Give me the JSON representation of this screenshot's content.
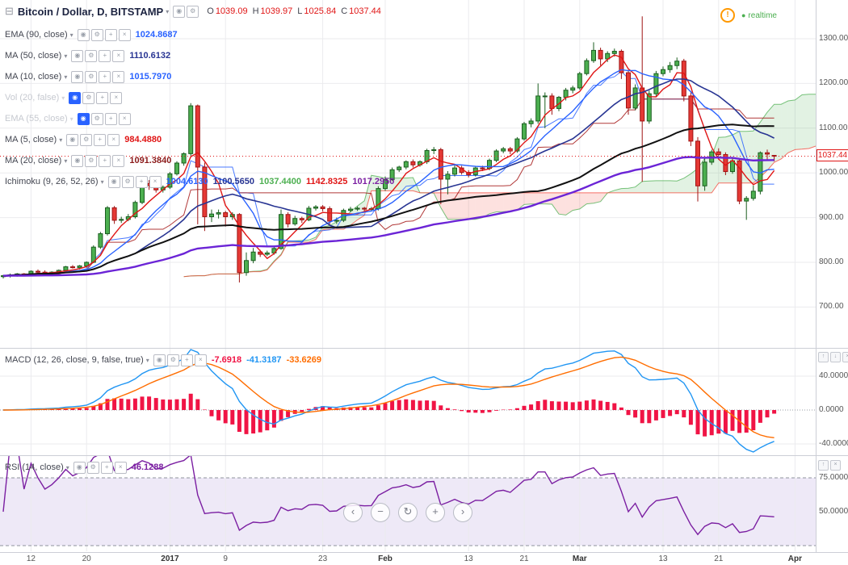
{
  "header": {
    "symbol_title": "Bitcoin / Dollar, D, BITSTAMP",
    "ohlc": {
      "o_label": "O",
      "o": "1039.09",
      "h_label": "H",
      "h": "1039.97",
      "l_label": "L",
      "l": "1025.84",
      "c_label": "C",
      "c": "1037.44"
    },
    "realtime_label": "realtime"
  },
  "icons": {
    "layout": "⊟",
    "caret": "▾",
    "eye": "◉",
    "gear": "⚙",
    "add": "+",
    "close": "×",
    "warn": "!",
    "dot": "●"
  },
  "indicators": [
    {
      "label": "EMA (90, close)",
      "hidden": false,
      "values": [
        {
          "text": "1024.8687",
          "color": "#2962ff"
        }
      ]
    },
    {
      "label": "MA (50, close)",
      "hidden": false,
      "values": [
        {
          "text": "1110.6132",
          "color": "#283593"
        }
      ]
    },
    {
      "label": "MA (10, close)",
      "hidden": false,
      "values": [
        {
          "text": "1015.7970",
          "color": "#2962ff"
        }
      ]
    },
    {
      "label": "Vol (20, false)",
      "hidden": true,
      "values": []
    },
    {
      "label": "EMA (55, close)",
      "hidden": true,
      "values": []
    },
    {
      "label": "MA (5, close)",
      "hidden": false,
      "values": [
        {
          "text": "984.4880",
          "color": "#e01515"
        }
      ]
    },
    {
      "label": "MA (20, close)",
      "hidden": false,
      "values": [
        {
          "text": "1091.3840",
          "color": "#8b1a1a"
        }
      ]
    },
    {
      "label": "Ichimoku (9, 26, 52, 26)",
      "hidden": false,
      "values": [
        {
          "text": "1004.6130",
          "color": "#2962ff"
        },
        {
          "text": "1100.5650",
          "color": "#283593"
        },
        {
          "text": "1037.4400",
          "color": "#4caf50"
        },
        {
          "text": "1142.8325",
          "color": "#e01515"
        },
        {
          "text": "1017.2950",
          "color": "#7b1fa2"
        }
      ]
    }
  ],
  "macd_legend": {
    "label": "MACD (12, 26, close, 9, false, true)",
    "hidden": false,
    "values": [
      {
        "text": "-7.6918",
        "color": "#f01445"
      },
      {
        "text": "-41.3187",
        "color": "#2196f3"
      },
      {
        "text": "-33.6269",
        "color": "#ff6d00"
      }
    ]
  },
  "rsi_legend": {
    "label": "RSI (14, close)",
    "hidden": false,
    "values": [
      {
        "text": "46.1288",
        "color": "#7b1fa2"
      }
    ]
  },
  "nav_buttons": [
    {
      "glyph": "‹",
      "name": "scroll-left-button"
    },
    {
      "glyph": "−",
      "name": "zoom-out-button"
    },
    {
      "glyph": "↻",
      "name": "reset-chart-button"
    },
    {
      "glyph": "+",
      "name": "zoom-in-button"
    },
    {
      "glyph": "›",
      "name": "scroll-right-button"
    }
  ],
  "pane_buttons": {
    "macd": [
      {
        "glyph": "↑",
        "name": "pane-move-up-button"
      },
      {
        "glyph": "↓",
        "name": "pane-move-down-button"
      },
      {
        "glyph": "×",
        "name": "pane-close-button"
      }
    ],
    "rsi": [
      {
        "glyph": "↑",
        "name": "pane-move-up-button"
      },
      {
        "glyph": "×",
        "name": "pane-close-button"
      }
    ]
  },
  "chart_data": {
    "type": "candlestick",
    "title": "Bitcoin / Dollar, D, BITSTAMP",
    "interval": "D",
    "price_axis_ticks": [
      1300,
      1200,
      1100,
      1000,
      900,
      800,
      700
    ],
    "last_price": 1037.44,
    "ylim": [
      660,
      1380
    ],
    "macd_axis_ticks": [
      40,
      0,
      -40
    ],
    "rsi_axis_ticks": [
      75,
      50
    ],
    "rsi_band": [
      25,
      75
    ],
    "overlays": [
      {
        "name": "MA5",
        "type": "sma",
        "period": 5,
        "color": "#e01515",
        "width": 1.4
      },
      {
        "name": "MA10",
        "type": "sma",
        "period": 10,
        "color": "#2962ff",
        "width": 1.4
      },
      {
        "name": "MA20",
        "type": "sma",
        "period": 20,
        "color": "#283593",
        "width": 1.6
      },
      {
        "name": "MA50",
        "type": "sma",
        "period": 50,
        "color": "#111111",
        "width": 2
      },
      {
        "name": "EMA90",
        "type": "ema",
        "period": 90,
        "color": "#6b24d6",
        "width": 2.4
      }
    ],
    "ichimoku": {
      "tenkan": 9,
      "kijun": 26,
      "senkouB": 52,
      "displacement": 26,
      "colors": {
        "tenkan": "#2962ff",
        "kijun": "#a31515",
        "spanA": "#4caf50",
        "spanB": "#f44336"
      }
    },
    "macd_params": {
      "fast": 12,
      "slow": 26,
      "signal": 9,
      "colors": {
        "macd": "#2196f3",
        "signal": "#ff6d00",
        "histogram": "#f01445"
      }
    },
    "rsi_params": {
      "period": 14,
      "color": "#7b1fa2"
    },
    "candle_colors": {
      "up_fill": "#4caf50",
      "up_stroke": "#1b5e20",
      "down_fill": "#e53935",
      "down_stroke": "#9f1414"
    },
    "time_labels": [
      {
        "text": "12",
        "index": 4
      },
      {
        "text": "20",
        "index": 12
      },
      {
        "text": "2017",
        "index": 24,
        "bold": true
      },
      {
        "text": "9",
        "index": 32
      },
      {
        "text": "23",
        "index": 46
      },
      {
        "text": "Feb",
        "index": 55,
        "bold": true
      },
      {
        "text": "13",
        "index": 67
      },
      {
        "text": "21",
        "index": 75
      },
      {
        "text": "Mar",
        "index": 83,
        "bold": true
      },
      {
        "text": "13",
        "index": 95
      },
      {
        "text": "21",
        "index": 103
      },
      {
        "text": "Apr",
        "index": 114,
        "bold": true
      }
    ],
    "candles": [
      [
        768,
        772,
        764,
        770
      ],
      [
        770,
        775,
        766,
        772
      ],
      [
        772,
        776,
        768,
        774
      ],
      [
        774,
        776,
        770,
        772
      ],
      [
        772,
        782,
        770,
        780
      ],
      [
        780,
        784,
        776,
        778
      ],
      [
        778,
        782,
        774,
        776
      ],
      [
        776,
        780,
        772,
        778
      ],
      [
        778,
        784,
        776,
        782
      ],
      [
        782,
        792,
        780,
        790
      ],
      [
        790,
        794,
        786,
        788
      ],
      [
        788,
        794,
        784,
        792
      ],
      [
        792,
        802,
        788,
        800
      ],
      [
        800,
        838,
        798,
        834
      ],
      [
        834,
        868,
        830,
        864
      ],
      [
        864,
        926,
        860,
        922
      ],
      [
        922,
        926,
        886,
        894
      ],
      [
        894,
        902,
        888,
        896
      ],
      [
        896,
        908,
        892,
        902
      ],
      [
        902,
        938,
        898,
        934
      ],
      [
        934,
        982,
        930,
        976
      ],
      [
        976,
        984,
        962,
        972
      ],
      [
        972,
        976,
        956,
        962
      ],
      [
        962,
        972,
        956,
        968
      ],
      [
        968,
        1002,
        964,
        998
      ],
      [
        998,
        1026,
        994,
        1022
      ],
      [
        1022,
        1046,
        1016,
        1043
      ],
      [
        1043,
        1156,
        1038,
        1150
      ],
      [
        1150,
        1153,
        885,
        1013
      ],
      [
        1013,
        1023,
        870,
        902
      ],
      [
        902,
        918,
        890,
        908
      ],
      [
        908,
        918,
        898,
        911
      ],
      [
        911,
        915,
        880,
        902
      ],
      [
        902,
        912,
        895,
        907
      ],
      [
        907,
        910,
        755,
        777
      ],
      [
        777,
        822,
        770,
        804
      ],
      [
        804,
        832,
        798,
        823
      ],
      [
        823,
        828,
        812,
        818
      ],
      [
        818,
        826,
        814,
        821
      ],
      [
        821,
        835,
        817,
        831
      ],
      [
        831,
        918,
        828,
        907
      ],
      [
        907,
        912,
        878,
        886
      ],
      [
        886,
        904,
        882,
        898
      ],
      [
        898,
        902,
        888,
        895
      ],
      [
        895,
        926,
        892,
        921
      ],
      [
        921,
        928,
        916,
        924
      ],
      [
        924,
        928,
        914,
        920
      ],
      [
        920,
        925,
        884,
        892
      ],
      [
        892,
        900,
        886,
        894
      ],
      [
        894,
        920,
        890,
        916
      ],
      [
        916,
        924,
        912,
        919
      ],
      [
        919,
        925,
        915,
        921
      ],
      [
        921,
        924,
        914,
        919
      ],
      [
        919,
        924,
        915,
        920
      ],
      [
        920,
        970,
        916,
        965
      ],
      [
        965,
        992,
        960,
        985
      ],
      [
        985,
        1012,
        982,
        1007
      ],
      [
        1007,
        1016,
        1002,
        1013
      ],
      [
        1013,
        1028,
        1008,
        1025
      ],
      [
        1025,
        1030,
        1012,
        1018
      ],
      [
        1018,
        1028,
        1014,
        1025
      ],
      [
        1025,
        1054,
        1020,
        1050
      ],
      [
        1050,
        1058,
        1042,
        1052
      ],
      [
        1052,
        1056,
        930,
        986
      ],
      [
        986,
        1004,
        952,
        997
      ],
      [
        997,
        1018,
        992,
        1011
      ],
      [
        1011,
        1016,
        996,
        1001
      ],
      [
        1001,
        1006,
        990,
        996
      ],
      [
        996,
        1014,
        992,
        1011
      ],
      [
        1011,
        1016,
        1004,
        1010
      ],
      [
        1010,
        1032,
        1006,
        1028
      ],
      [
        1028,
        1053,
        1024,
        1049
      ],
      [
        1049,
        1058,
        1044,
        1054
      ],
      [
        1054,
        1058,
        1042,
        1049
      ],
      [
        1049,
        1080,
        1045,
        1076
      ],
      [
        1076,
        1114,
        1072,
        1110
      ],
      [
        1110,
        1122,
        1102,
        1116
      ],
      [
        1116,
        1200,
        1110,
        1172
      ],
      [
        1172,
        1180,
        1100,
        1172
      ],
      [
        1172,
        1178,
        1130,
        1144
      ],
      [
        1144,
        1172,
        1138,
        1169
      ],
      [
        1169,
        1190,
        1162,
        1185
      ],
      [
        1185,
        1195,
        1178,
        1190
      ],
      [
        1190,
        1226,
        1186,
        1222
      ],
      [
        1222,
        1256,
        1218,
        1251
      ],
      [
        1251,
        1292,
        1246,
        1274
      ],
      [
        1274,
        1280,
        1240,
        1255
      ],
      [
        1255,
        1272,
        1248,
        1267
      ],
      [
        1267,
        1278,
        1260,
        1272
      ],
      [
        1272,
        1276,
        1210,
        1224
      ],
      [
        1224,
        1230,
        1130,
        1145
      ],
      [
        1145,
        1198,
        1140,
        1190
      ],
      [
        1190,
        1350,
        980,
        1116
      ],
      [
        1116,
        1184,
        1110,
        1177
      ],
      [
        1177,
        1228,
        1170,
        1222
      ],
      [
        1222,
        1238,
        1216,
        1231
      ],
      [
        1231,
        1248,
        1224,
        1240
      ],
      [
        1240,
        1258,
        1232,
        1250
      ],
      [
        1250,
        1255,
        1160,
        1172
      ],
      [
        1172,
        1180,
        1060,
        1071
      ],
      [
        1071,
        1080,
        936,
        971
      ],
      [
        971,
        1035,
        960,
        1024
      ],
      [
        1024,
        1052,
        1018,
        1047
      ],
      [
        1047,
        1055,
        1030,
        1041
      ],
      [
        1041,
        1046,
        995,
        1003
      ],
      [
        1003,
        1032,
        998,
        1027
      ],
      [
        1027,
        1032,
        930,
        937
      ],
      [
        937,
        948,
        895,
        943
      ],
      [
        943,
        972,
        938,
        959
      ],
      [
        959,
        1048,
        952,
        1045
      ],
      [
        1045,
        1052,
        1030,
        1042
      ],
      [
        1039.09,
        1039.97,
        1025.84,
        1037.44
      ]
    ]
  }
}
